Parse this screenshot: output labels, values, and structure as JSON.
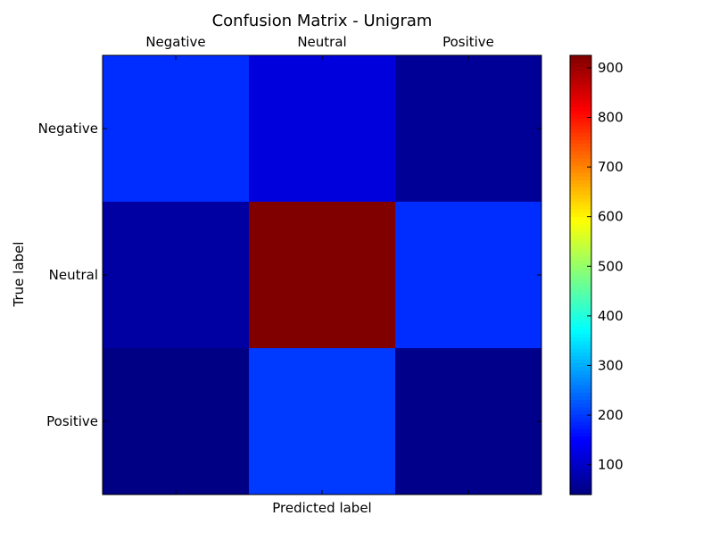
{
  "chart_data": {
    "type": "heatmap",
    "title": "Confusion Matrix - Unigram",
    "xlabel": "Predicted label",
    "ylabel": "True label",
    "x_categories": [
      "Negative",
      "Neutral",
      "Positive"
    ],
    "y_categories": [
      "Negative",
      "Neutral",
      "Positive"
    ],
    "values": [
      [
        190,
        120,
        60
      ],
      [
        70,
        925,
        190
      ],
      [
        45,
        200,
        50
      ]
    ],
    "colormap": "jet",
    "colorbar": {
      "min": 40,
      "max": 925,
      "ticks": [
        100,
        200,
        300,
        400,
        500,
        600,
        700,
        800,
        900
      ]
    },
    "x_tick_position": "top"
  }
}
